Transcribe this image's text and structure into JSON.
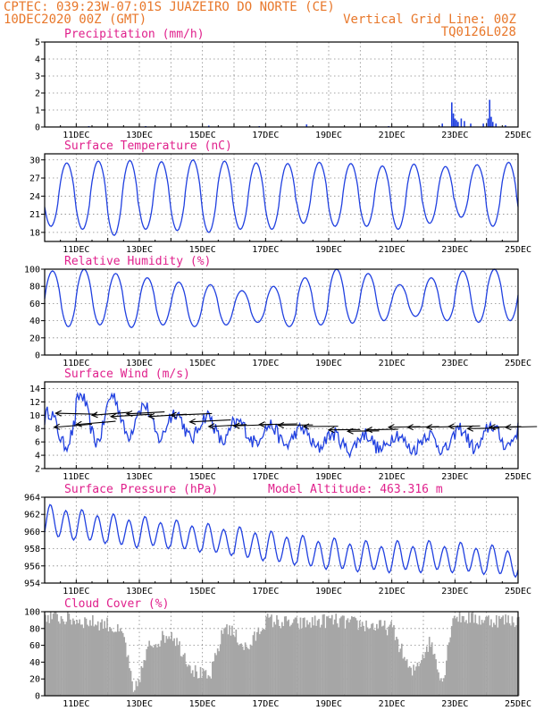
{
  "header": {
    "line1_left": "CPTEC:   039:23W-07:01S  JUAZEIRO DO NORTE (CE)",
    "line2_left": "10DEC2020 00Z (GMT)",
    "line2_right": "Vertical Grid Line: 00Z",
    "line3_right": "TQ0126L028"
  },
  "x_tick_labels": [
    "11DEC",
    "13DEC",
    "15DEC",
    "17DEC",
    "19DEC",
    "21DEC",
    "23DEC",
    "25DEC"
  ],
  "colors": {
    "header": "#e8772a",
    "title": "#e0208c",
    "line": "#2040e0",
    "cloud": "#a6a6a6"
  },
  "chart_data": [
    {
      "id": "precip",
      "type": "bar",
      "title": "Precipitation (mm/h)",
      "ylim": [
        0,
        5
      ],
      "yticks": [
        "0",
        "1",
        "2",
        "3",
        "4",
        "5"
      ],
      "grid": true,
      "x_unit": "days since 10DEC2020 00Z",
      "xlim": [
        0,
        15
      ],
      "events": [
        [
          1.4,
          0.03
        ],
        [
          3.2,
          0.05
        ],
        [
          5.2,
          0.08
        ],
        [
          6.8,
          0.05
        ],
        [
          8.3,
          0.15
        ],
        [
          10.9,
          0.05
        ],
        [
          12.6,
          0.2
        ],
        [
          12.9,
          1.45
        ],
        [
          12.95,
          0.8
        ],
        [
          13.0,
          0.5
        ],
        [
          13.05,
          0.4
        ],
        [
          13.1,
          0.3
        ],
        [
          13.2,
          0.5
        ],
        [
          13.3,
          0.35
        ],
        [
          13.5,
          0.2
        ],
        [
          13.9,
          0.2
        ],
        [
          14.05,
          0.5
        ],
        [
          14.1,
          1.6
        ],
        [
          14.15,
          0.6
        ],
        [
          14.2,
          0.3
        ],
        [
          14.3,
          0.2
        ],
        [
          14.6,
          0.1
        ]
      ]
    },
    {
      "id": "temp",
      "type": "line",
      "title": "Surface Temperature (nC)",
      "ylim": [
        16.5,
        31
      ],
      "yticks": [
        "18",
        "21",
        "24",
        "27",
        "30"
      ],
      "grid": true,
      "amp_min": [
        19.0,
        18.5,
        17.5,
        18.5,
        18.3,
        18.0,
        18.5,
        18.5,
        19.5,
        19.0,
        19.0,
        18.5,
        19.5,
        20.5,
        19.0
      ],
      "amp_max": [
        29.5,
        29.8,
        29.9,
        29.7,
        30.0,
        29.8,
        29.5,
        29.4,
        29.6,
        29.4,
        29.0,
        29.3,
        28.9,
        29.2,
        29.6
      ]
    },
    {
      "id": "rh",
      "type": "line",
      "title": "Relative Humidity (%)",
      "ylim": [
        0,
        100
      ],
      "yticks": [
        "0",
        "20",
        "40",
        "60",
        "80",
        "100"
      ],
      "grid": true,
      "amp_min": [
        33,
        35,
        32,
        35,
        33,
        35,
        38,
        33,
        35,
        37,
        40,
        45,
        40,
        38,
        40
      ],
      "amp_max": [
        98,
        100,
        95,
        90,
        85,
        82,
        75,
        80,
        90,
        100,
        95,
        82,
        90,
        98,
        100
      ]
    },
    {
      "id": "wind",
      "type": "line",
      "title": "Surface Wind (m/s)",
      "ylim": [
        2,
        15
      ],
      "yticks": [
        "2",
        "4",
        "6",
        "8",
        "10",
        "12",
        "14"
      ],
      "grid": true,
      "base": [
        8.0,
        9.5,
        10.0,
        9.0,
        8.5,
        8.0,
        7.5,
        7.0,
        6.5,
        6.0,
        6.0,
        6.0,
        6.0,
        6.5,
        7.0
      ],
      "swing": [
        2.5,
        3.5,
        3.0,
        2.5,
        2.0,
        2.0,
        1.5,
        1.5,
        1.5,
        1.2,
        1.2,
        1.2,
        1.2,
        1.5,
        1.5
      ],
      "arrows": [
        [
          0.3,
          8.2,
          1.2,
          0.45
        ],
        [
          0.35,
          10.3,
          1.3,
          -0.15
        ],
        [
          1.0,
          8.6,
          1.25,
          0.5
        ],
        [
          1.5,
          10.0,
          1.2,
          0.45
        ],
        [
          2.1,
          9.8,
          1.3,
          0.35
        ],
        [
          2.6,
          10.2,
          1.2,
          0.3
        ],
        [
          3.3,
          9.8,
          1.2,
          0.35
        ],
        [
          4.0,
          10.0,
          1.3,
          0.25
        ],
        [
          4.6,
          9.0,
          1.3,
          0.3
        ],
        [
          5.2,
          8.3,
          1.2,
          0.3
        ],
        [
          6.0,
          8.4,
          1.2,
          0.2
        ],
        [
          6.8,
          8.6,
          1.2,
          0.1
        ],
        [
          7.4,
          8.5,
          1.1,
          0.05
        ],
        [
          8.2,
          8.3,
          1.1,
          0.05
        ],
        [
          9.0,
          7.8,
          1.0,
          0.05
        ],
        [
          9.6,
          7.6,
          1.0,
          0.05
        ],
        [
          10.2,
          7.8,
          1.0,
          0.1
        ],
        [
          10.9,
          8.2,
          1.0,
          0.1
        ],
        [
          11.5,
          8.2,
          1.0,
          0.1
        ],
        [
          12.1,
          8.2,
          1.0,
          0.1
        ],
        [
          12.8,
          8.3,
          1.0,
          0.1
        ],
        [
          13.4,
          8.0,
          1.0,
          0.05
        ],
        [
          14.1,
          8.2,
          1.0,
          0.1
        ],
        [
          14.6,
          8.2,
          1.0,
          0.1
        ]
      ]
    },
    {
      "id": "press",
      "type": "line",
      "title": "Surface Pressure (hPa)",
      "subtitle": "Model Altitude: 463.316 m",
      "ylim": [
        954,
        964
      ],
      "yticks": [
        "954",
        "956",
        "958",
        "960",
        "962",
        "964"
      ],
      "grid": true,
      "trend": [
        961.0,
        960.5,
        960.0,
        959.8,
        959.4,
        959.0,
        958.5,
        958.0,
        957.5,
        957.2,
        957.0,
        957.0,
        957.0,
        956.8,
        956.5
      ],
      "amp": [
        1.8,
        1.7,
        1.7,
        1.6,
        1.6,
        1.6,
        1.7,
        1.7,
        1.7,
        1.7,
        1.6,
        1.6,
        1.6,
        1.6,
        1.6
      ]
    },
    {
      "id": "cloud",
      "type": "bar",
      "title": "Cloud Cover (%)",
      "ylim": [
        0,
        100
      ],
      "yticks": [
        "0",
        "20",
        "40",
        "60",
        "80",
        "100"
      ],
      "grid": true,
      "levels": [
        [
          0.0,
          95
        ],
        [
          1.0,
          90
        ],
        [
          2.0,
          85
        ],
        [
          2.5,
          70
        ],
        [
          2.8,
          0
        ],
        [
          3.3,
          60
        ],
        [
          4.0,
          75
        ],
        [
          4.7,
          30
        ],
        [
          5.2,
          20
        ],
        [
          5.7,
          85
        ],
        [
          6.4,
          55
        ],
        [
          7.0,
          90
        ],
        [
          8.0,
          85
        ],
        [
          9.0,
          90
        ],
        [
          10.0,
          85
        ],
        [
          11.0,
          80
        ],
        [
          11.6,
          25
        ],
        [
          12.2,
          65
        ],
        [
          12.6,
          15
        ],
        [
          12.9,
          95
        ],
        [
          14.0,
          90
        ],
        [
          15.0,
          90
        ]
      ]
    }
  ]
}
